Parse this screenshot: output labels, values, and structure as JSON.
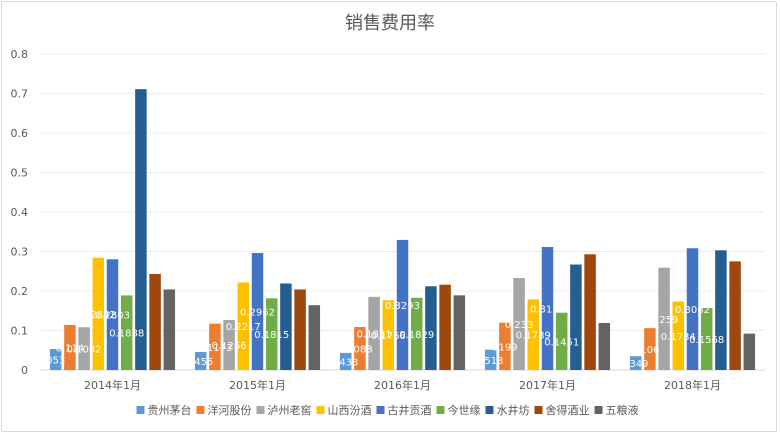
{
  "chart_data": {
    "type": "bar",
    "title": "销售费用率",
    "categories": [
      "2014年1月",
      "2015年1月",
      "2016年1月",
      "2017年1月",
      "2018年1月"
    ],
    "ylim": [
      0,
      0.8
    ],
    "yticks": [
      "0",
      "0.1",
      "0.2",
      "0.3",
      "0.4",
      "0.5",
      "0.6",
      "0.7",
      "0.8"
    ],
    "grid": true,
    "legend_position": "bottom",
    "series": [
      {
        "name": "贵州茅台",
        "color": "#5b9bd5",
        "values": [
          0.053,
          0.0455,
          0.0433,
          0.0513,
          0.0349
        ],
        "labels": [
          "053",
          "0455",
          "0433",
          "0513",
          "0349"
        ]
      },
      {
        "name": "洋河股份",
        "color": "#ed7d31",
        "values": [
          0.114,
          0.1173,
          0.1088,
          0.1199,
          0.106
        ],
        "labels": [
          "0.114",
          "0.1173",
          "1088",
          "1199",
          "106"
        ]
      },
      {
        "name": "泸州老窖",
        "color": "#a5a5a5",
        "values": [
          0.1082,
          0.1266,
          0.1851,
          0.233,
          0.259
        ],
        "labels": [
          "0.1082",
          "0.1266",
          "0.1851",
          "0.233",
          "0.259"
        ]
      },
      {
        "name": "山西汾酒",
        "color": "#ffc000",
        "values": [
          0.2842,
          0.2217,
          0.1766,
          0.1789,
          0.1734
        ],
        "labels": [
          "0.2842",
          "0.2217",
          "0.1766",
          "0.1789",
          "0.1734"
        ]
      },
      {
        "name": "古井贡酒",
        "color": "#4472c4",
        "values": [
          0.2803,
          0.2962,
          0.3293,
          0.3113,
          0.3082
        ],
        "labels": [
          "0.2803",
          "0.2962",
          "0.3293",
          "0.3113",
          "0.3082"
        ]
      },
      {
        "name": "今世缘",
        "color": "#70ad47",
        "values": [
          0.1888,
          0.1815,
          0.1829,
          0.1451,
          0.1568
        ],
        "labels": [
          "0.1888",
          "0.1815",
          "0.1829",
          "0.1451",
          "0.1568"
        ]
      },
      {
        "name": "水井坊",
        "color": "#255e91",
        "values": [
          0.711,
          0.219,
          0.212,
          0.267,
          0.303
        ],
        "labels": [
          "",
          "",
          "",
          "",
          ""
        ]
      },
      {
        "name": "舍得酒业",
        "color": "#9e480e",
        "values": [
          0.243,
          0.204,
          0.216,
          0.293,
          0.275
        ],
        "labels": [
          "",
          "",
          "",
          "",
          ""
        ]
      },
      {
        "name": "五粮液",
        "color": "#636363",
        "values": [
          0.204,
          0.164,
          0.189,
          0.119,
          0.092
        ],
        "labels": [
          "",
          "",
          "",
          "",
          ""
        ]
      }
    ]
  }
}
